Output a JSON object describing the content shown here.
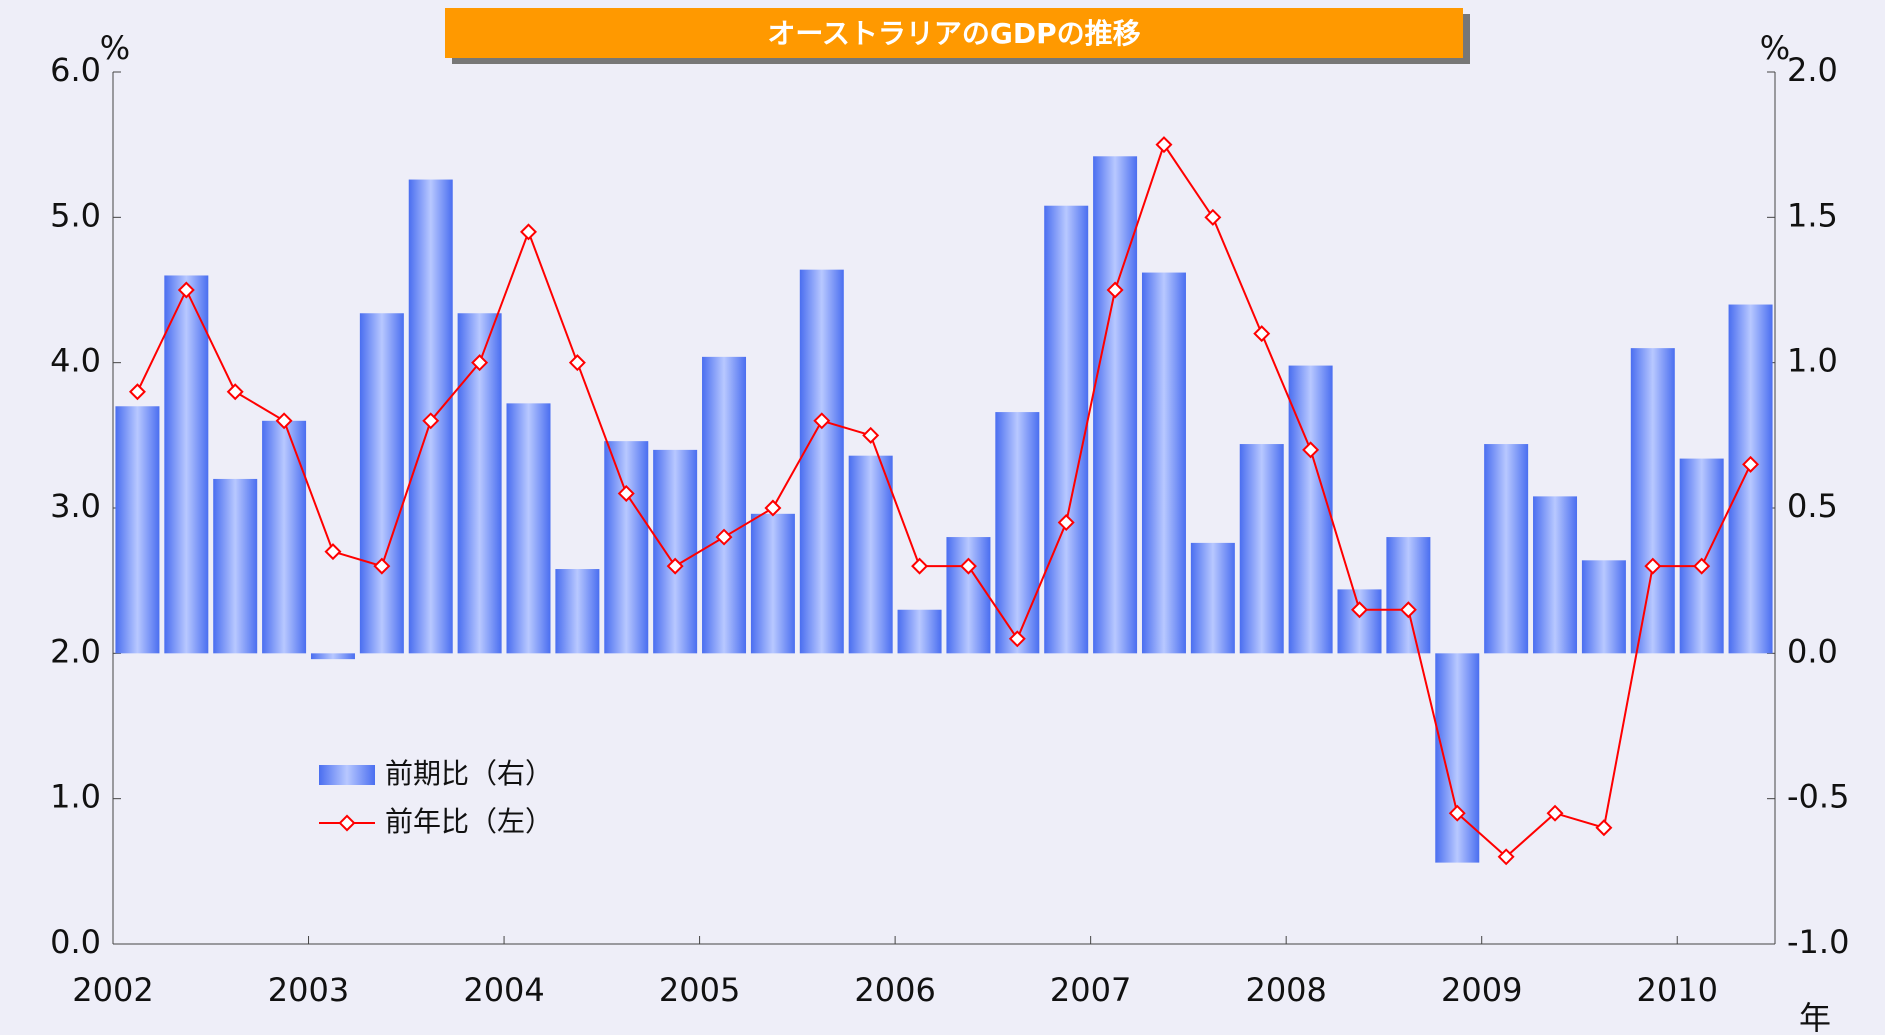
{
  "chart_data": {
    "type": "bar_line",
    "title": "オーストラリアのGDPの推移",
    "y_unit": "%",
    "y2_unit": "%",
    "x_unit": "年",
    "categories": [
      "2002",
      null,
      null,
      null,
      "2003",
      null,
      null,
      null,
      "2004",
      null,
      null,
      null,
      "2005",
      null,
      null,
      null,
      "2006",
      null,
      null,
      null,
      "2007",
      null,
      null,
      null,
      "2008",
      null,
      null,
      null,
      "2009",
      null,
      null,
      null,
      "2010",
      null
    ],
    "series": [
      {
        "name": "前期比（右）",
        "type": "bar",
        "axis": "y2",
        "color": "#6f8cf5",
        "values": [
          0.85,
          1.3,
          0.6,
          0.8,
          -0.02,
          1.17,
          1.63,
          1.17,
          0.86,
          0.29,
          0.73,
          0.7,
          1.02,
          0.48,
          1.32,
          0.68,
          0.15,
          0.4,
          0.83,
          1.54,
          1.71,
          1.31,
          0.38,
          0.72,
          0.99,
          0.22,
          0.4,
          -0.72,
          0.72,
          0.54,
          0.32,
          1.05,
          0.67,
          1.2
        ]
      },
      {
        "name": "前年比（左）",
        "type": "line",
        "color": "#ff0000",
        "values": [
          3.8,
          4.5,
          3.8,
          3.6,
          2.7,
          2.6,
          3.6,
          4.0,
          4.9,
          4.0,
          3.1,
          2.6,
          2.8,
          3.0,
          3.6,
          3.5,
          2.6,
          2.6,
          2.1,
          2.9,
          4.5,
          5.5,
          5.0,
          4.2,
          3.4,
          2.3,
          2.3,
          0.9,
          0.6,
          0.9,
          0.8,
          2.6,
          2.6,
          3.3
        ]
      }
    ],
    "ylim": [
      0,
      6
    ],
    "yticks": [
      {
        "value": 0,
        "label": "0.0"
      },
      {
        "value": 1,
        "label": "1.0"
      },
      {
        "value": 2,
        "label": "2.0"
      },
      {
        "value": 3,
        "label": "3.0"
      },
      {
        "value": 4,
        "label": "4.0"
      },
      {
        "value": 5,
        "label": "5.0"
      },
      {
        "value": 6,
        "label": "6.0"
      }
    ],
    "y2lim": [
      -1,
      2
    ],
    "y2ticks": [
      {
        "value": -1,
        "label": "-1.0"
      },
      -0.5,
      {
        "value": 0,
        "label": "0.0"
      },
      0.5,
      {
        "value": 1,
        "label": "1.0"
      },
      1.5,
      {
        "value": 2,
        "label": "2.0"
      }
    ],
    "legend": "lower left"
  }
}
